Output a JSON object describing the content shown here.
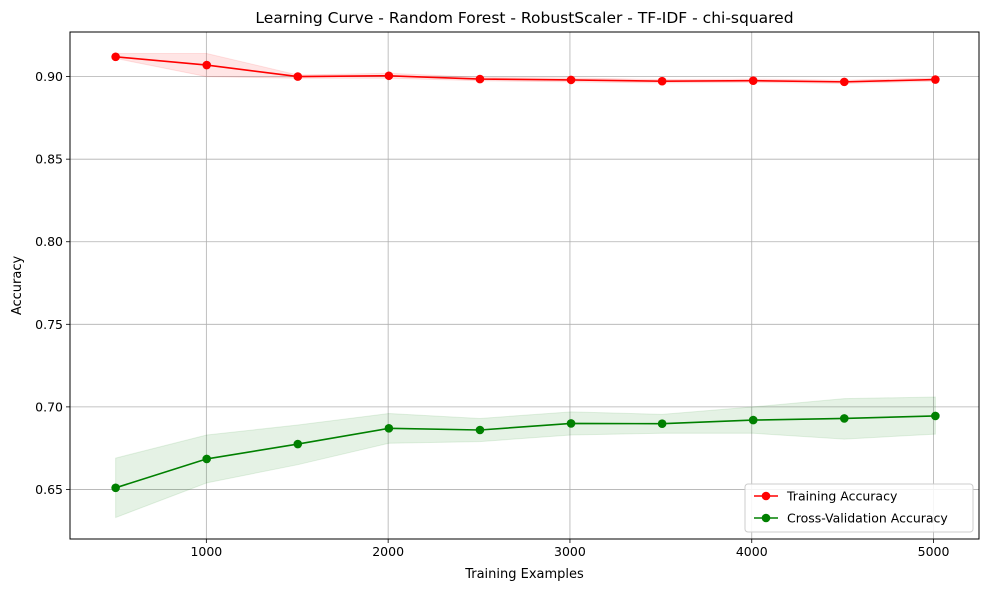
{
  "chart_data": {
    "type": "line",
    "title": "Learning Curve - Random Forest - RobustScaler - TF-IDF - chi-squared",
    "xlabel": "Training Examples",
    "ylabel": "Accuracy",
    "xlim": [
      250,
      5250
    ],
    "ylim": [
      0.62,
      0.927
    ],
    "xticks": [
      1000,
      2000,
      3000,
      4000,
      5000
    ],
    "xtick_labels": [
      "1000",
      "2000",
      "3000",
      "4000",
      "5000"
    ],
    "yticks": [
      0.65,
      0.7,
      0.75,
      0.8,
      0.85,
      0.9
    ],
    "ytick_labels": [
      "0.65",
      "0.70",
      "0.75",
      "0.80",
      "0.85",
      "0.90"
    ],
    "grid": true,
    "legend_position": "lower-right",
    "x": [
      501,
      1002,
      1503,
      2004,
      2505,
      3006,
      3507,
      4008,
      4509,
      5010
    ],
    "series": [
      {
        "name": "Training Accuracy",
        "color": "#ff0000",
        "band_color": "#ff0000",
        "values": [
          0.912,
          0.907,
          0.9,
          0.9005,
          0.8985,
          0.898,
          0.8972,
          0.8975,
          0.8968,
          0.8982
        ],
        "lower": [
          0.911,
          0.9,
          0.899,
          0.899,
          0.8975,
          0.8968,
          0.8962,
          0.8965,
          0.8958,
          0.8972
        ],
        "upper": [
          0.914,
          0.914,
          0.901,
          0.902,
          0.8995,
          0.8992,
          0.8982,
          0.8985,
          0.8978,
          0.8992
        ]
      },
      {
        "name": "Cross-Validation Accuracy",
        "color": "#008000",
        "band_color": "#008000",
        "values": [
          0.651,
          0.6685,
          0.6775,
          0.687,
          0.686,
          0.69,
          0.6898,
          0.692,
          0.693,
          0.6945
        ],
        "lower": [
          0.633,
          0.654,
          0.665,
          0.678,
          0.679,
          0.683,
          0.684,
          0.684,
          0.6805,
          0.6835
        ],
        "upper": [
          0.669,
          0.683,
          0.689,
          0.696,
          0.693,
          0.697,
          0.6955,
          0.7,
          0.705,
          0.706
        ]
      }
    ]
  }
}
